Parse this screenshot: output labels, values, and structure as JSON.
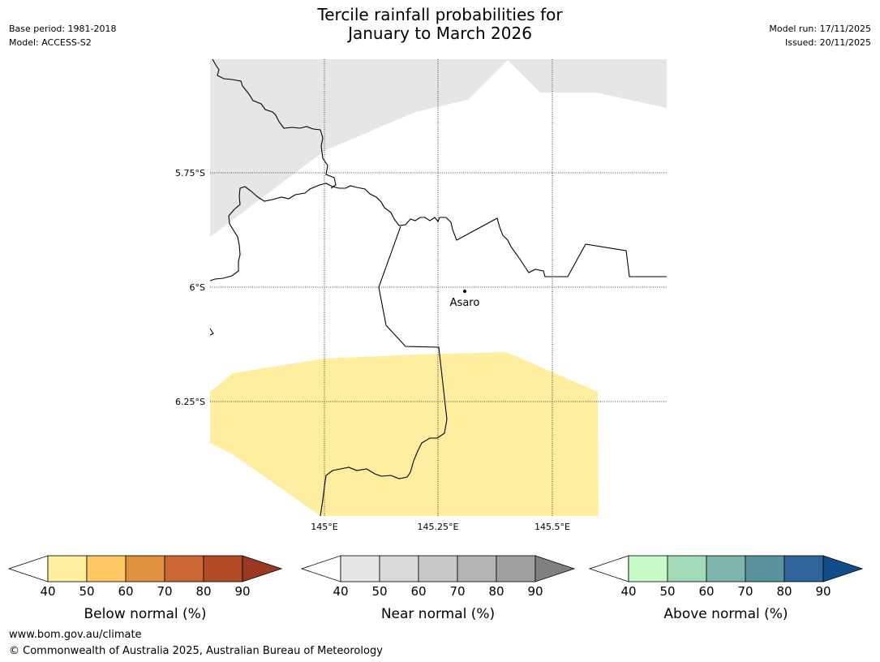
{
  "title": {
    "line1": "Tercile rainfall probabilities for",
    "line2": "January to March 2026"
  },
  "meta_left": {
    "base_period": "Base period: 1981-2018",
    "model": "Model: ACCESS-S2"
  },
  "meta_right": {
    "model_run": "Model run: 17/11/2025",
    "issued": "Issued: 20/11/2025"
  },
  "map": {
    "lat_labels": [
      "5.75°S",
      "6°S",
      "6.25°S"
    ],
    "lon_labels": [
      "145°E",
      "145.25°E",
      "145.5°E"
    ],
    "place": "Asaro",
    "colors": {
      "near_normal_fill": "#e6e6e6",
      "below_normal_fill": "#ffeda0",
      "border": "#000000"
    }
  },
  "legends": [
    {
      "label": "Below normal (%)",
      "ticks": [
        "40",
        "50",
        "60",
        "70",
        "80",
        "90"
      ],
      "colors": [
        "#ffffff",
        "#ffeda0",
        "#fec965",
        "#e0913e",
        "#cc6633",
        "#b34a26",
        "#993921"
      ]
    },
    {
      "label": "Near normal (%)",
      "ticks": [
        "40",
        "50",
        "60",
        "70",
        "80",
        "90"
      ],
      "colors": [
        "#ffffff",
        "#e6e6e6",
        "#d9d9d9",
        "#c8c8c8",
        "#b3b3b3",
        "#a0a0a0",
        "#808080"
      ]
    },
    {
      "label": "Above normal (%)",
      "ticks": [
        "40",
        "50",
        "60",
        "70",
        "80",
        "90"
      ],
      "colors": [
        "#ffffff",
        "#c8fac8",
        "#a2dab8",
        "#7db4ab",
        "#5a929e",
        "#31659a",
        "#0f4e88"
      ]
    }
  ],
  "footer": {
    "url": "www.bom.gov.au/climate",
    "copyright": "© Commonwealth of Australia 2025, Australian Bureau of Meteorology"
  }
}
